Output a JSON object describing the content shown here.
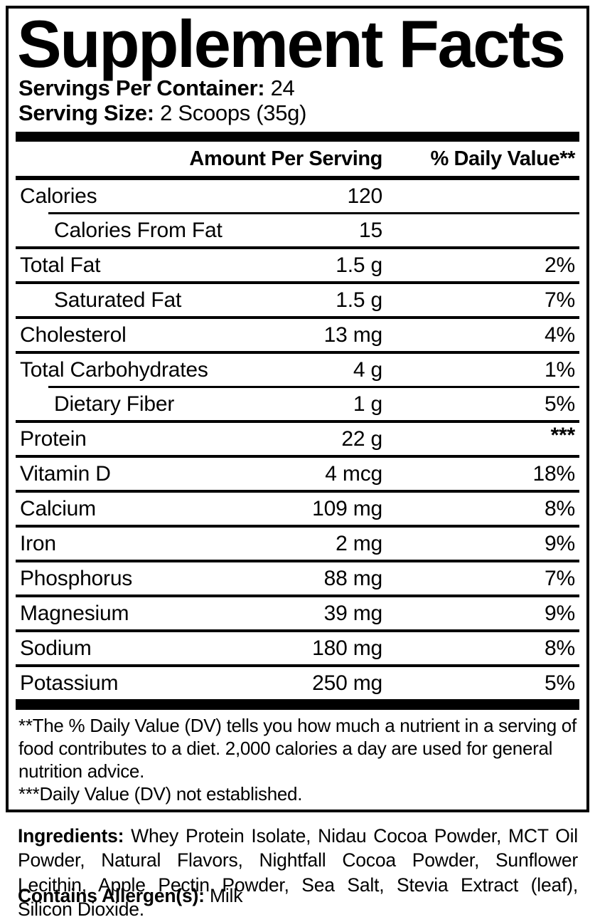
{
  "panel": {
    "title": "Supplement Facts",
    "servings_per_container": {
      "label": "Servings Per Container:",
      "value": "24"
    },
    "serving_size": {
      "label": "Serving Size:",
      "value": "2 Scoops (35g)"
    },
    "table": {
      "amount_header": "Amount Per Serving",
      "dv_header": "% Daily Value**",
      "rows": [
        {
          "name": "Calories",
          "amount": "120",
          "dv": "",
          "indent": false,
          "sep_above": "none"
        },
        {
          "name": "Calories From Fat",
          "amount": "15",
          "dv": "",
          "indent": true,
          "sep_above": "inset"
        },
        {
          "name": "Total Fat",
          "amount": "1.5 g",
          "dv": "2%",
          "indent": false,
          "sep_above": "full"
        },
        {
          "name": "Saturated Fat",
          "amount": "1.5 g",
          "dv": "7%",
          "indent": true,
          "sep_above": "full"
        },
        {
          "name": "Cholesterol",
          "amount": "13 mg",
          "dv": "4%",
          "indent": false,
          "sep_above": "full"
        },
        {
          "name": "Total Carbohydrates",
          "amount": "4 g",
          "dv": "1%",
          "indent": false,
          "sep_above": "full"
        },
        {
          "name": "Dietary Fiber",
          "amount": "1 g",
          "dv": "5%",
          "indent": true,
          "sep_above": "inset"
        },
        {
          "name": "Protein",
          "amount": "22 g",
          "dv": "***",
          "indent": false,
          "sep_above": "full"
        },
        {
          "name": "Vitamin D",
          "amount": "4 mcg",
          "dv": "18%",
          "indent": false,
          "sep_above": "full"
        },
        {
          "name": "Calcium",
          "amount": "109 mg",
          "dv": "8%",
          "indent": false,
          "sep_above": "full"
        },
        {
          "name": "Iron",
          "amount": "2 mg",
          "dv": "9%",
          "indent": false,
          "sep_above": "full"
        },
        {
          "name": "Phosphorus",
          "amount": "88 mg",
          "dv": "7%",
          "indent": false,
          "sep_above": "full"
        },
        {
          "name": "Magnesium",
          "amount": "39 mg",
          "dv": "9%",
          "indent": false,
          "sep_above": "full"
        },
        {
          "name": "Sodium",
          "amount": "180 mg",
          "dv": "8%",
          "indent": false,
          "sep_above": "full"
        },
        {
          "name": "Potassium",
          "amount": "250 mg",
          "dv": "5%",
          "indent": false,
          "sep_above": "full"
        }
      ]
    },
    "footnotes": [
      "**The % Daily Value (DV) tells you how much a nutrient in a serving of food contributes to a diet. 2,000 calories a day are used for general nutrition advice.",
      "***Daily Value (DV) not established."
    ]
  },
  "ingredients": {
    "label": "Ingredients:",
    "text": "Whey Protein Isolate, Nidau Cocoa Powder, MCT Oil Powder, Natural Flavors, Nightfall Cocoa Powder, Sunflower Lecithin, Apple Pectin Powder, Sea Salt, Stevia Extract (leaf), Silicon Dioxide."
  },
  "allergens": {
    "label": "Contains Allergen(s):",
    "value": "Milk"
  },
  "colors": {
    "ink": "#000000",
    "background": "#ffffff"
  }
}
